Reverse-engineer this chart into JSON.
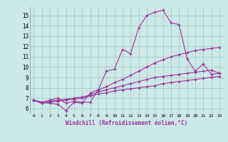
{
  "xlabel": "Windchill (Refroidissement éolien,°C)",
  "ylabel": "",
  "bg_color": "#cce8e8",
  "grid_color": "#aacccc",
  "line_color": "#993399",
  "marker": "+",
  "xlim": [
    -0.5,
    23.5
  ],
  "ylim": [
    5.5,
    15.8
  ],
  "xticks": [
    0,
    1,
    2,
    3,
    4,
    5,
    6,
    7,
    8,
    9,
    10,
    11,
    12,
    13,
    14,
    15,
    16,
    17,
    18,
    19,
    20,
    21,
    22,
    23
  ],
  "yticks": [
    6,
    7,
    8,
    9,
    10,
    11,
    12,
    13,
    14,
    15
  ],
  "series": [
    [
      6.8,
      6.6,
      6.5,
      6.4,
      5.8,
      6.6,
      6.5,
      7.5,
      7.8,
      9.6,
      9.8,
      11.7,
      11.3,
      13.8,
      15.0,
      15.3,
      15.5,
      14.3,
      14.1,
      10.8,
      9.6,
      10.3,
      9.3,
      9.4
    ],
    [
      6.8,
      6.6,
      6.8,
      7.0,
      6.5,
      6.7,
      6.6,
      6.6,
      7.8,
      8.1,
      8.5,
      8.8,
      9.2,
      9.6,
      10.0,
      10.4,
      10.7,
      11.0,
      11.2,
      11.4,
      11.6,
      11.7,
      11.8,
      11.9
    ],
    [
      6.8,
      6.5,
      6.7,
      6.8,
      6.9,
      7.0,
      7.1,
      7.3,
      7.6,
      7.8,
      8.0,
      8.2,
      8.4,
      8.6,
      8.8,
      9.0,
      9.1,
      9.2,
      9.3,
      9.4,
      9.5,
      9.6,
      9.7,
      9.4
    ],
    [
      6.8,
      6.5,
      6.6,
      6.7,
      6.8,
      6.9,
      7.0,
      7.2,
      7.4,
      7.5,
      7.7,
      7.8,
      7.9,
      8.0,
      8.1,
      8.2,
      8.4,
      8.5,
      8.6,
      8.7,
      8.8,
      8.9,
      9.0,
      9.1
    ]
  ]
}
